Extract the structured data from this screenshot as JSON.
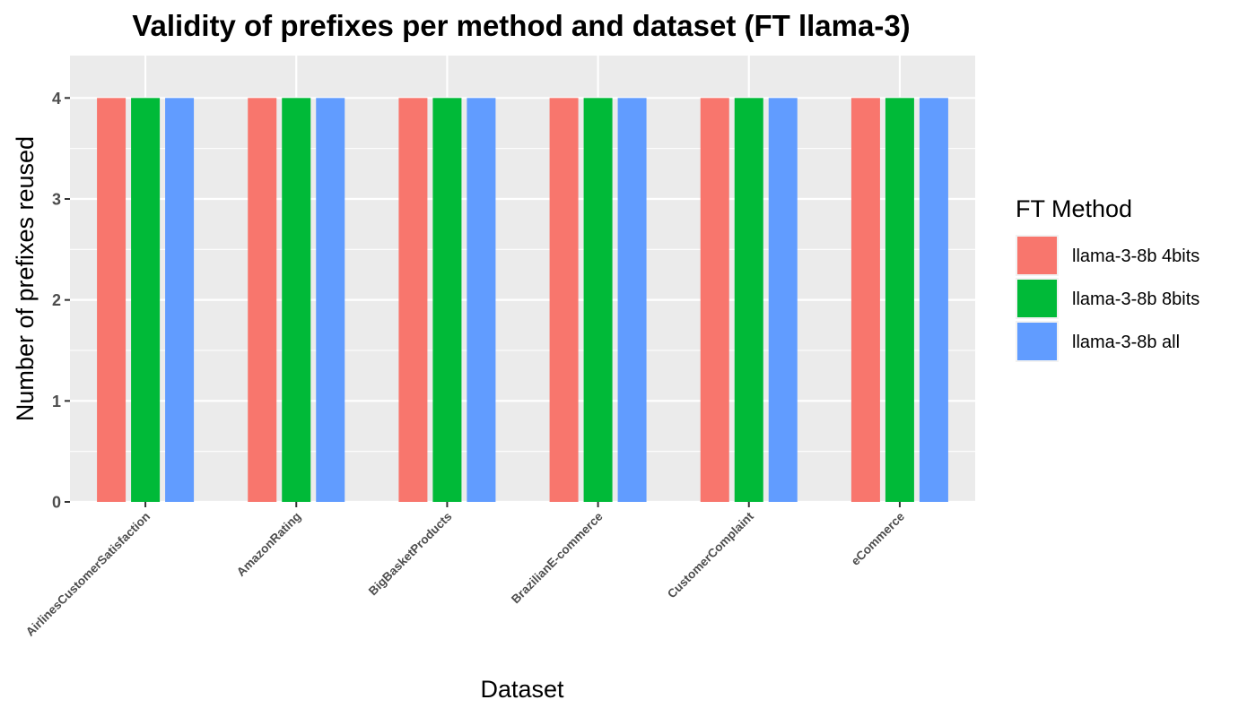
{
  "chart_data": {
    "type": "bar",
    "title": "Validity of prefixes per method and dataset (FT llama-3)",
    "xlabel": "Dataset",
    "ylabel": "Number of prefixes reused",
    "categories": [
      "AirlinesCustomerSatisfaction",
      "AmazonRating",
      "BigBasketProducts",
      "BrazilianE-commerce",
      "CustomerComplaint",
      "eCommerce"
    ],
    "series": [
      {
        "name": "llama-3-8b 4bits",
        "color": "#F8766D",
        "values": [
          4,
          4,
          4,
          4,
          4,
          4
        ]
      },
      {
        "name": "llama-3-8b 8bits",
        "color": "#00BA38",
        "values": [
          4,
          4,
          4,
          4,
          4,
          4
        ]
      },
      {
        "name": "llama-3-8b all",
        "color": "#619CFF",
        "values": [
          4,
          4,
          4,
          4,
          4,
          4
        ]
      }
    ],
    "ylim": [
      0,
      4.42
    ],
    "yticks": [
      0,
      1,
      2,
      3,
      4
    ],
    "grid": true,
    "legend": {
      "title": "FT Method",
      "position": "right"
    },
    "panel_background": "#EBEBEB"
  }
}
